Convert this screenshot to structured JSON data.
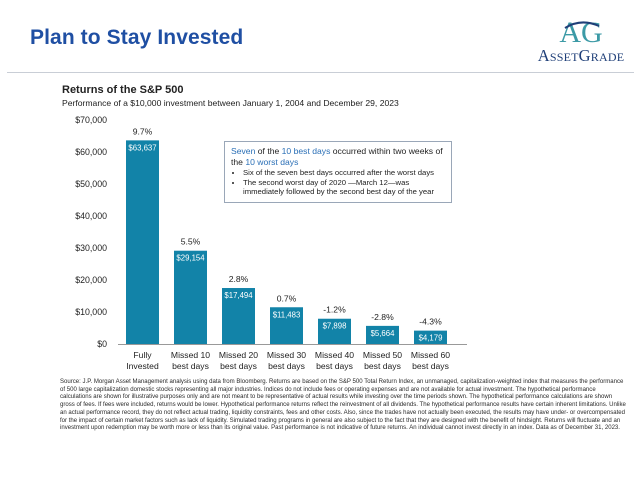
{
  "header": {
    "title": "Plan to Stay Invested",
    "logo_mark": "AG",
    "logo_word": "AssetGrade"
  },
  "colors": {
    "title": "#1f4fa3",
    "bar": "#1283a8",
    "logo_teal": "#3c9aa6",
    "logo_navy": "#1f3f78",
    "callout_highlight": "#2a6fb6"
  },
  "callout": {
    "headline_pre": "Seven",
    "headline_mid1": " of the ",
    "headline_hl1": "10 best days",
    "headline_mid2": " occurred within two weeks of the ",
    "headline_hl2": "10 worst days",
    "bullets": [
      "Six of the seven best days occurred after the worst days",
      "The second worst day of 2020 —March 12—was immediately followed by the second best day of the year"
    ]
  },
  "chart_data": {
    "type": "bar",
    "title": "Returns of the S&P 500",
    "subtitle": "Performance of a $10,000 investment between January 1, 2004 and December 29, 2023",
    "categories": [
      [
        "Fully",
        "Invested"
      ],
      [
        "Missed 10",
        "best days"
      ],
      [
        "Missed 20",
        "best days"
      ],
      [
        "Missed 30",
        "best days"
      ],
      [
        "Missed 40",
        "best days"
      ],
      [
        "Missed 50",
        "best days"
      ],
      [
        "Missed 60",
        "best days"
      ]
    ],
    "values": [
      63637,
      29154,
      17494,
      11483,
      7898,
      5664,
      4179
    ],
    "value_labels": [
      "$63,637",
      "$29,154",
      "$17,494",
      "$11,483",
      "$7,898",
      "$5,664",
      "$4,179"
    ],
    "annual_returns": [
      "9.7%",
      "5.5%",
      "2.8%",
      "0.7%",
      "-1.2%",
      "-2.8%",
      "-4.3%"
    ],
    "y_ticks": [
      0,
      10000,
      20000,
      30000,
      40000,
      50000,
      60000,
      70000
    ],
    "y_tick_labels": [
      "$0",
      "$10,000",
      "$20,000",
      "$30,000",
      "$40,000",
      "$50,000",
      "$60,000",
      "$70,000"
    ],
    "ylim": [
      0,
      70000
    ],
    "grid": false,
    "legend": "none"
  },
  "footnote": "Source: J.P. Morgan Asset Management analysis using data from Bloomberg. Returns are based on the S&P 500 Total Return Index, an unmanaged, capitalization-weighted index that measures the performance of 500 large capitalization domestic stocks representing all major industries. Indices do not include fees or operating expenses and are not available for actual investment. The hypothetical performance calculations are shown for illustrative purposes only and are not meant to be representative of actual results while investing over the time periods shown. The hypothetical performance calculations are shown gross of fees. If fees were included, returns would be lower. Hypothetical performance returns reflect the reinvestment of all dividends. The hypothetical performance results have certain inherent limitations. Unlike an actual performance record, they do not reflect actual trading, liquidity constraints, fees and other costs. Also, since the trades have not actually been executed, the results may have under- or overcompensated for the impact of certain market factors such as lack of liquidity. Simulated trading programs in general are also subject to the fact that they are designed with the benefit of hindsight. Returns will fluctuate and an investment upon redemption may be worth more or less than its original value. Past performance is not indicative of future returns. An individual cannot invest directly in an index. Data as of December 31, 2023."
}
